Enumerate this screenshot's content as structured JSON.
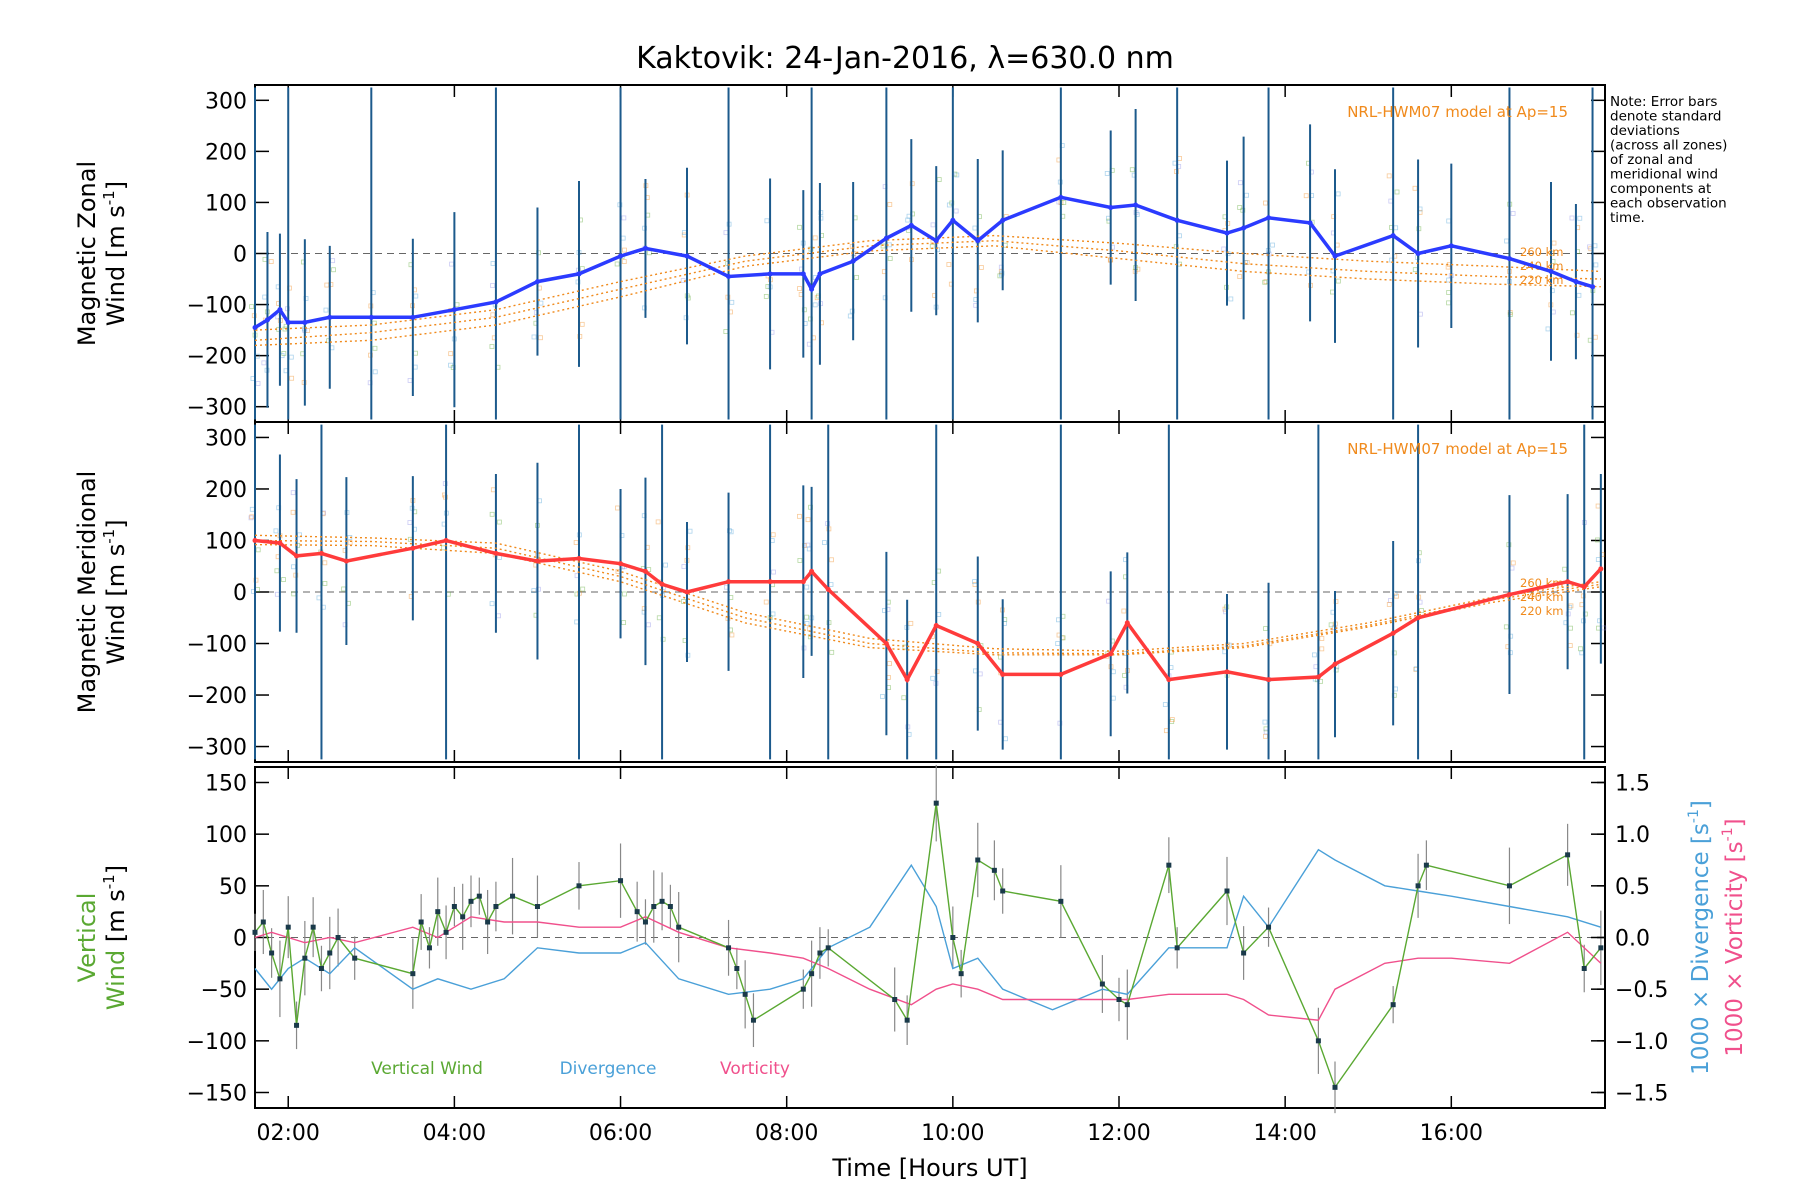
{
  "title": "Kaktovik: 24-Jan-2016, λ=630.0 nm",
  "note": "Note: Error bars denote standard deviations (across all zones) of zonal and meridional wind components at each observation time.",
  "colors": {
    "zonal": "#2b3bff",
    "meridional": "#ff3b3b",
    "model": "#f08a1c",
    "errorbar": "#1c5a8c",
    "vertical": "#5aa832",
    "divergence": "#4aa0d8",
    "vorticity": "#f0508c"
  },
  "chart_data": [
    {
      "type": "line",
      "panel": "zonal",
      "ylabel": "Magnetic Zonal",
      "ylabel2": "Wind [m s",
      "ylim": [
        -330,
        330
      ],
      "yticks": [
        -300,
        -200,
        -100,
        0,
        100,
        200,
        300
      ],
      "model_label": "NRL-HWM07 model at Ap=15",
      "model_altitudes": [
        "260 km",
        "240 km",
        "220 km"
      ],
      "series": [
        {
          "x": [
            1.6,
            1.75,
            1.9,
            2.0,
            2.2,
            2.5,
            3.0,
            3.5,
            4.0,
            4.5,
            5.0,
            5.5,
            6.0,
            6.3,
            6.8,
            7.3,
            7.8,
            8.2,
            8.3,
            8.4,
            8.8,
            9.2,
            9.5,
            9.8,
            10.0,
            10.3,
            10.6,
            11.3,
            11.9,
            12.2,
            12.7,
            13.3,
            13.5,
            13.8,
            14.3,
            14.6,
            15.3,
            15.6,
            16.0,
            16.7,
            17.2,
            17.5,
            17.7
          ],
          "y": [
            -145,
            -130,
            -110,
            -135,
            -135,
            -125,
            -125,
            -125,
            -110,
            -95,
            -55,
            -40,
            -5,
            10,
            -5,
            -45,
            -40,
            -40,
            -70,
            -40,
            -15,
            30,
            55,
            25,
            65,
            25,
            65,
            110,
            90,
            95,
            65,
            40,
            50,
            70,
            60,
            -5,
            35,
            0,
            15,
            -10,
            -35,
            -55,
            -65
          ]
        }
      ],
      "model": [
        {
          "name": "260 km",
          "x": [
            1.6,
            3,
            4.5,
            6,
            7.5,
            9,
            10.5,
            12,
            13.5,
            15,
            16.5,
            17.8
          ],
          "y": [
            -150,
            -140,
            -110,
            -55,
            -5,
            25,
            35,
            20,
            0,
            -15,
            -25,
            -35
          ]
        },
        {
          "name": "240 km",
          "x": [
            1.6,
            3,
            4.5,
            6,
            7.5,
            9,
            10.5,
            12,
            13.5,
            15,
            16.5,
            17.8
          ],
          "y": [
            -170,
            -155,
            -125,
            -70,
            -15,
            15,
            25,
            5,
            -20,
            -35,
            -45,
            -50
          ]
        },
        {
          "name": "220 km",
          "x": [
            1.6,
            3,
            4.5,
            6,
            7.5,
            9,
            10.5,
            12,
            13.5,
            15,
            16.5,
            17.8
          ],
          "y": [
            -180,
            -170,
            -140,
            -85,
            -25,
            5,
            15,
            -10,
            -35,
            -50,
            -60,
            -65
          ]
        }
      ]
    },
    {
      "type": "line",
      "panel": "meridional",
      "ylabel": "Magnetic Meridional",
      "ylabel2": "Wind [m s",
      "ylim": [
        -330,
        330
      ],
      "yticks": [
        -300,
        -200,
        -100,
        0,
        100,
        200,
        300
      ],
      "model_label": "NRL-HWM07 model at Ap=15",
      "model_altitudes": [
        "260 km",
        "240 km",
        "220 km"
      ],
      "series": [
        {
          "x": [
            1.6,
            1.9,
            2.1,
            2.4,
            2.7,
            3.5,
            3.9,
            4.5,
            5.0,
            5.5,
            6.0,
            6.3,
            6.5,
            6.8,
            7.3,
            7.8,
            8.2,
            8.3,
            8.5,
            9.2,
            9.45,
            9.8,
            10.3,
            10.6,
            11.3,
            11.9,
            12.1,
            12.6,
            13.3,
            13.8,
            14.4,
            14.6,
            15.3,
            15.6,
            16.7,
            17.4,
            17.6,
            17.8
          ],
          "y": [
            100,
            95,
            70,
            75,
            60,
            85,
            100,
            75,
            60,
            65,
            55,
            40,
            15,
            0,
            20,
            20,
            20,
            40,
            5,
            -100,
            -170,
            -65,
            -100,
            -160,
            -160,
            -120,
            -60,
            -170,
            -155,
            -170,
            -165,
            -140,
            -80,
            -50,
            -5,
            20,
            10,
            45
          ]
        }
      ],
      "model": [
        {
          "name": "260 km",
          "x": [
            1.6,
            3,
            4.5,
            6,
            7.5,
            9,
            10.5,
            12,
            13.5,
            15,
            16.5,
            17.8
          ],
          "y": [
            110,
            105,
            95,
            40,
            -40,
            -90,
            -110,
            -115,
            -100,
            -60,
            -10,
            20
          ]
        },
        {
          "name": "240 km",
          "x": [
            1.6,
            3,
            4.5,
            6,
            7.5,
            9,
            10.5,
            12,
            13.5,
            15,
            16.5,
            17.8
          ],
          "y": [
            100,
            98,
            85,
            30,
            -50,
            -100,
            -118,
            -120,
            -105,
            -65,
            -15,
            15
          ]
        },
        {
          "name": "220 km",
          "x": [
            1.6,
            3,
            4.5,
            6,
            7.5,
            9,
            10.5,
            12,
            13.5,
            15,
            16.5,
            17.8
          ],
          "y": [
            92,
            90,
            75,
            20,
            -60,
            -108,
            -122,
            -122,
            -108,
            -68,
            -20,
            10
          ]
        }
      ]
    },
    {
      "type": "line",
      "panel": "vertical",
      "ylabel": "Vertical",
      "ylabel2": "Wind [m s",
      "ylim": [
        -165,
        165
      ],
      "yticks": [
        -150,
        -100,
        -50,
        0,
        50,
        100,
        150
      ],
      "y2label_div": "1000 × Divergence [s",
      "y2label_vor": "1000 × Vorticity [s",
      "y2lim": [
        -1.65,
        1.65
      ],
      "y2ticks": [
        -1.5,
        -1.0,
        -0.5,
        0.0,
        0.5,
        1.0,
        1.5
      ],
      "xlabel": "Time [Hours UT]",
      "xticks": [
        2,
        4,
        6,
        8,
        10,
        12,
        14,
        16
      ],
      "xticklabels": [
        "02:00",
        "04:00",
        "06:00",
        "08:00",
        "10:00",
        "12:00",
        "14:00",
        "16:00"
      ],
      "xlim": [
        1.6,
        17.85
      ],
      "legend": [
        "Vertical Wind",
        "Divergence",
        "Vorticity"
      ],
      "series": [
        {
          "name": "Vertical Wind",
          "axis": "left",
          "x": [
            1.6,
            1.7,
            1.8,
            1.9,
            2.0,
            2.1,
            2.2,
            2.3,
            2.4,
            2.5,
            2.6,
            2.8,
            3.5,
            3.6,
            3.7,
            3.8,
            3.9,
            4.0,
            4.1,
            4.2,
            4.3,
            4.4,
            4.5,
            4.7,
            5.0,
            5.5,
            6.0,
            6.2,
            6.3,
            6.4,
            6.5,
            6.6,
            6.7,
            7.3,
            7.4,
            7.5,
            7.6,
            8.2,
            8.3,
            8.4,
            8.5,
            9.3,
            9.45,
            9.8,
            10.0,
            10.1,
            10.3,
            10.5,
            10.6,
            11.3,
            11.8,
            12.0,
            12.1,
            12.6,
            12.7,
            13.3,
            13.5,
            13.8,
            14.4,
            14.6,
            15.3,
            15.6,
            15.7,
            16.7,
            17.4,
            17.6,
            17.8
          ],
          "y": [
            5,
            15,
            -15,
            -40,
            10,
            -85,
            -20,
            10,
            -30,
            -15,
            0,
            -20,
            -35,
            15,
            -10,
            25,
            5,
            30,
            20,
            35,
            40,
            15,
            30,
            40,
            30,
            50,
            55,
            25,
            15,
            30,
            35,
            30,
            10,
            -10,
            -30,
            -55,
            -80,
            -50,
            -35,
            -15,
            -10,
            -60,
            -80,
            130,
            0,
            -35,
            75,
            65,
            45,
            35,
            -45,
            -60,
            -65,
            70,
            -10,
            45,
            -15,
            10,
            -100,
            -145,
            -65,
            50,
            70,
            50,
            80,
            -30,
            -10
          ]
        },
        {
          "name": "Divergence",
          "axis": "right",
          "x": [
            1.6,
            1.8,
            2.0,
            2.2,
            2.5,
            2.8,
            3.5,
            3.8,
            4.2,
            4.6,
            5.0,
            5.5,
            6.0,
            6.3,
            6.7,
            7.3,
            7.8,
            8.2,
            8.5,
            9.0,
            9.5,
            9.8,
            10.0,
            10.3,
            10.6,
            11.2,
            11.8,
            12.1,
            12.6,
            13.3,
            13.5,
            13.8,
            14.4,
            14.6,
            15.2,
            15.6,
            16.0,
            16.7,
            17.4,
            17.8
          ],
          "y": [
            -0.3,
            -0.5,
            -0.3,
            -0.2,
            -0.35,
            -0.1,
            -0.5,
            -0.4,
            -0.5,
            -0.4,
            -0.1,
            -0.15,
            -0.15,
            -0.05,
            -0.4,
            -0.55,
            -0.5,
            -0.4,
            -0.1,
            0.1,
            0.7,
            0.3,
            -0.3,
            -0.2,
            -0.5,
            -0.7,
            -0.5,
            -0.55,
            -0.1,
            -0.1,
            0.4,
            0.1,
            0.85,
            0.75,
            0.5,
            0.45,
            0.4,
            0.3,
            0.2,
            0.1
          ]
        },
        {
          "name": "Vorticity",
          "axis": "right",
          "x": [
            1.6,
            1.8,
            2.0,
            2.2,
            2.5,
            2.8,
            3.5,
            3.8,
            4.2,
            4.6,
            5.0,
            5.5,
            6.0,
            6.3,
            6.7,
            7.3,
            7.8,
            8.2,
            8.5,
            9.0,
            9.5,
            9.8,
            10.0,
            10.3,
            10.6,
            11.2,
            11.8,
            12.1,
            12.6,
            13.3,
            13.5,
            13.8,
            14.4,
            14.6,
            15.2,
            15.6,
            16.0,
            16.7,
            17.4,
            17.8
          ],
          "y": [
            0.0,
            0.05,
            0.0,
            -0.05,
            0.0,
            -0.05,
            0.1,
            0.0,
            0.2,
            0.15,
            0.15,
            0.1,
            0.1,
            0.2,
            0.05,
            -0.1,
            -0.15,
            -0.2,
            -0.3,
            -0.5,
            -0.65,
            -0.5,
            -0.45,
            -0.5,
            -0.6,
            -0.6,
            -0.6,
            -0.6,
            -0.55,
            -0.55,
            -0.6,
            -0.75,
            -0.8,
            -0.5,
            -0.25,
            -0.2,
            -0.2,
            -0.25,
            0.05,
            -0.25
          ]
        }
      ]
    }
  ]
}
